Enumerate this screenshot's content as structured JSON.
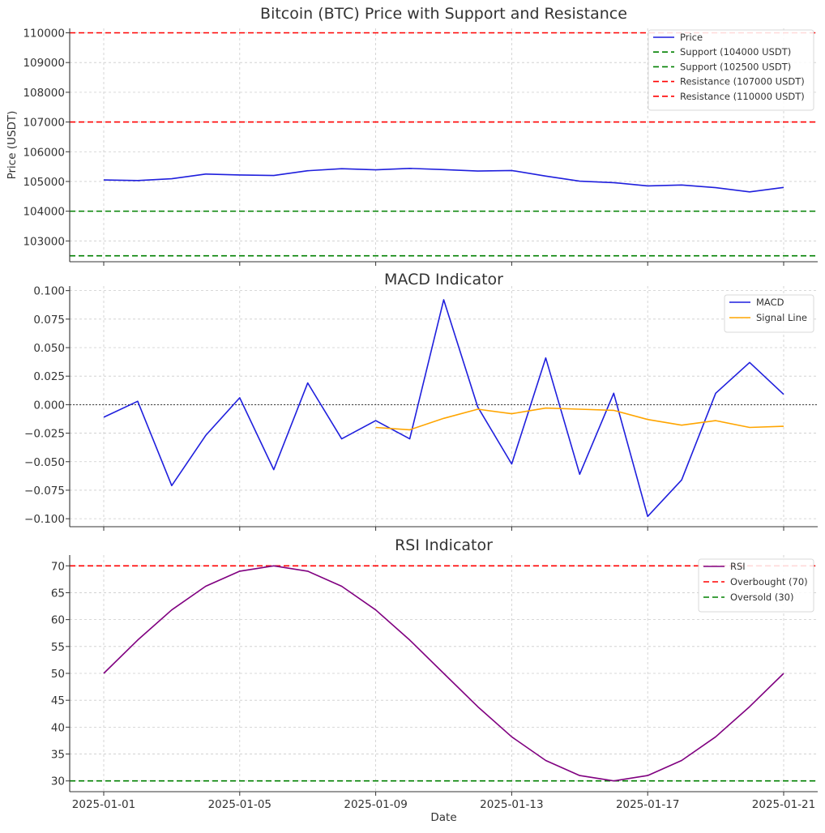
{
  "x_labels": [
    "2025-01-01",
    "2025-01-05",
    "2025-01-09",
    "2025-01-13",
    "2025-01-17",
    "2025-01-21"
  ],
  "xlabel": "Date",
  "chart_data": [
    {
      "type": "line",
      "title": "Bitcoin (BTC) Price with Support and Resistance",
      "ylabel": "Price (USDT)",
      "ylim": [
        102300,
        110150
      ],
      "yticks": [
        103000,
        104000,
        105000,
        106000,
        107000,
        108000,
        109000,
        110000
      ],
      "grid": true,
      "legend_position": "top-right",
      "x": [
        "2025-01-01",
        "2025-01-02",
        "2025-01-03",
        "2025-01-04",
        "2025-01-05",
        "2025-01-06",
        "2025-01-07",
        "2025-01-08",
        "2025-01-09",
        "2025-01-10",
        "2025-01-11",
        "2025-01-12",
        "2025-01-13",
        "2025-01-14",
        "2025-01-15",
        "2025-01-16",
        "2025-01-17",
        "2025-01-18",
        "2025-01-19",
        "2025-01-20",
        "2025-01-21"
      ],
      "series": [
        {
          "name": "Price",
          "color": "#1f1fdd",
          "style": "solid",
          "values": [
            105050,
            105030,
            105090,
            105250,
            105220,
            105200,
            105360,
            105430,
            105390,
            105440,
            105400,
            105350,
            105370,
            105180,
            105010,
            104960,
            104850,
            104880,
            104790,
            104650,
            104800
          ]
        }
      ],
      "hlines": [
        {
          "name": "Support (104000 USDT)",
          "value": 104000,
          "color": "#008000",
          "style": "dashed"
        },
        {
          "name": "Support (102500 USDT)",
          "value": 102500,
          "color": "#008000",
          "style": "dashed"
        },
        {
          "name": "Resistance (107000 USDT)",
          "value": 107000,
          "color": "#ff0000",
          "style": "dashed"
        },
        {
          "name": "Resistance (110000 USDT)",
          "value": 110000,
          "color": "#ff0000",
          "style": "dashed"
        }
      ]
    },
    {
      "type": "line",
      "title": "MACD Indicator",
      "ylabel": "",
      "ylim": [
        -0.107,
        0.104
      ],
      "yticks": [
        -0.1,
        -0.075,
        -0.05,
        -0.025,
        0.0,
        0.025,
        0.05,
        0.075,
        0.1
      ],
      "ytick_labels": [
        "−0.100",
        "−0.075",
        "−0.050",
        "−0.025",
        "0.000",
        "0.025",
        "0.050",
        "0.075",
        "0.100"
      ],
      "grid": true,
      "legend_position": "top-right",
      "x": [
        "2025-01-01",
        "2025-01-02",
        "2025-01-03",
        "2025-01-04",
        "2025-01-05",
        "2025-01-06",
        "2025-01-07",
        "2025-01-08",
        "2025-01-09",
        "2025-01-10",
        "2025-01-11",
        "2025-01-12",
        "2025-01-13",
        "2025-01-14",
        "2025-01-15",
        "2025-01-16",
        "2025-01-17",
        "2025-01-18",
        "2025-01-19",
        "2025-01-20",
        "2025-01-21"
      ],
      "series": [
        {
          "name": "MACD",
          "color": "#1f1fdd",
          "style": "solid",
          "values": [
            -0.011,
            0.003,
            -0.071,
            -0.027,
            0.006,
            -0.057,
            0.019,
            -0.03,
            -0.014,
            -0.03,
            0.092,
            -0.002,
            -0.052,
            0.041,
            -0.061,
            0.01,
            -0.098,
            -0.066,
            0.01,
            0.037,
            0.009
          ]
        },
        {
          "name": "Signal Line",
          "color": "#ffa500",
          "style": "solid",
          "values": [
            null,
            null,
            null,
            null,
            null,
            null,
            null,
            null,
            -0.02,
            -0.022,
            -0.012,
            -0.004,
            -0.008,
            -0.003,
            -0.004,
            -0.005,
            -0.013,
            -0.018,
            -0.014,
            -0.02,
            -0.019
          ]
        }
      ],
      "hlines": [
        {
          "name": "",
          "value": 0.0,
          "color": "#000000",
          "style": "dotted"
        }
      ]
    },
    {
      "type": "line",
      "title": "RSI Indicator",
      "ylabel": "",
      "ylim": [
        28,
        72
      ],
      "yticks": [
        30,
        35,
        40,
        45,
        50,
        55,
        60,
        65,
        70
      ],
      "grid": true,
      "legend_position": "top-right",
      "x": [
        "2025-01-01",
        "2025-01-02",
        "2025-01-03",
        "2025-01-04",
        "2025-01-05",
        "2025-01-06",
        "2025-01-07",
        "2025-01-08",
        "2025-01-09",
        "2025-01-10",
        "2025-01-11",
        "2025-01-12",
        "2025-01-13",
        "2025-01-14",
        "2025-01-15",
        "2025-01-16",
        "2025-01-17",
        "2025-01-18",
        "2025-01-19",
        "2025-01-20",
        "2025-01-21"
      ],
      "series": [
        {
          "name": "RSI",
          "color": "#800080",
          "style": "solid",
          "values": [
            50.0,
            56.2,
            61.8,
            66.2,
            69.0,
            70.0,
            69.0,
            66.2,
            61.8,
            56.2,
            50.0,
            43.8,
            38.2,
            33.8,
            31.0,
            30.0,
            31.0,
            33.8,
            38.2,
            43.8,
            50.0
          ]
        }
      ],
      "hlines": [
        {
          "name": "Overbought (70)",
          "value": 70,
          "color": "#ff0000",
          "style": "dashed"
        },
        {
          "name": "Oversold (30)",
          "value": 30,
          "color": "#008000",
          "style": "dashed"
        }
      ]
    }
  ]
}
